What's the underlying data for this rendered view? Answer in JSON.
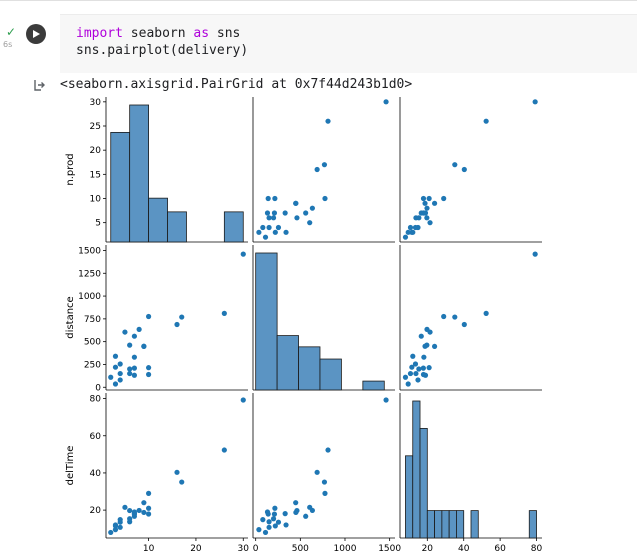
{
  "cell": {
    "status": "✓",
    "exec_time": "6s",
    "code_lines": [
      {
        "kw": "import",
        "rest": " seaborn ",
        "kw2": "as",
        "rest2": " sns"
      },
      {
        "plain": "sns.pairplot(delivery)"
      }
    ],
    "output_text": "<seaborn.axisgrid.PairGrid at 0x7f44d243b1d0>"
  },
  "colors": {
    "point": "#1f77b4",
    "bar": "#5b94c3",
    "success": "#2e9e4f"
  },
  "chart_data": {
    "type": "scatter",
    "variables": [
      "n.prod",
      "distance",
      "delTime"
    ],
    "ticks": {
      "n.prod": [
        5,
        10,
        15,
        20,
        25,
        30
      ],
      "n.prod_x": [
        10,
        20,
        30
      ],
      "distance": [
        0,
        250,
        500,
        750,
        1000,
        1250,
        1500
      ],
      "distance_x": [
        0,
        500,
        1000,
        1500
      ],
      "delTime": [
        20,
        40,
        60,
        80
      ],
      "delTime_x": [
        20,
        40,
        60,
        80
      ]
    },
    "ranges": {
      "n.prod": [
        1,
        31
      ],
      "distance": [
        -30,
        1560
      ],
      "delTime": [
        5,
        83
      ]
    },
    "records": [
      {
        "n.prod": 7,
        "distance": 560,
        "delTime": 16.68
      },
      {
        "n.prod": 3,
        "distance": 220,
        "delTime": 11.5
      },
      {
        "n.prod": 3,
        "distance": 340,
        "delTime": 12.03
      },
      {
        "n.prod": 4,
        "distance": 80,
        "delTime": 14.88
      },
      {
        "n.prod": 6,
        "distance": 150,
        "delTime": 13.75
      },
      {
        "n.prod": 7,
        "distance": 330,
        "delTime": 18.11
      },
      {
        "n.prod": 2,
        "distance": 110,
        "delTime": 8
      },
      {
        "n.prod": 7,
        "distance": 210,
        "delTime": 17.83
      },
      {
        "n.prod": 30,
        "distance": 1460,
        "delTime": 79.24
      },
      {
        "n.prod": 5,
        "distance": 605,
        "delTime": 21.5
      },
      {
        "n.prod": 16,
        "distance": 688,
        "delTime": 40.33
      },
      {
        "n.prod": 10,
        "distance": 215,
        "delTime": 21
      },
      {
        "n.prod": 4,
        "distance": 255,
        "delTime": 13.5
      },
      {
        "n.prod": 6,
        "distance": 462,
        "delTime": 19.75
      },
      {
        "n.prod": 9,
        "distance": 448,
        "delTime": 24
      },
      {
        "n.prod": 10,
        "distance": 776,
        "delTime": 29
      },
      {
        "n.prod": 6,
        "distance": 200,
        "delTime": 15.35
      },
      {
        "n.prod": 7,
        "distance": 132,
        "delTime": 19
      },
      {
        "n.prod": 3,
        "distance": 36,
        "delTime": 9.5
      },
      {
        "n.prod": 17,
        "distance": 770,
        "delTime": 35.1
      },
      {
        "n.prod": 10,
        "distance": 140,
        "delTime": 17.9
      },
      {
        "n.prod": 26,
        "distance": 810,
        "delTime": 52.32
      },
      {
        "n.prod": 9,
        "distance": 450,
        "delTime": 18.75
      },
      {
        "n.prod": 8,
        "distance": 635,
        "delTime": 19.83
      },
      {
        "n.prod": 4,
        "distance": 150,
        "delTime": 10.75
      }
    ],
    "histograms": {
      "n.prod": {
        "edges": [
          2,
          6,
          10,
          14,
          18,
          22,
          26,
          30
        ],
        "counts": [
          20,
          25,
          8,
          5.5,
          0,
          0,
          5.5
        ]
      },
      "distance": {
        "edges": [
          0,
          240,
          480,
          720,
          960,
          1200,
          1440
        ],
        "counts": [
          1460,
          580,
          460,
          330,
          0,
          95
        ]
      },
      "delTime": {
        "edges": [
          8,
          12,
          16,
          20,
          24,
          28,
          32,
          36,
          40,
          44,
          48,
          52,
          56,
          60,
          64,
          68,
          72,
          76,
          80
        ],
        "counts": [
          3,
          5,
          4,
          1,
          1,
          1,
          1,
          1,
          0,
          1,
          0,
          0,
          0,
          0,
          0,
          0,
          0,
          1
        ]
      }
    }
  }
}
